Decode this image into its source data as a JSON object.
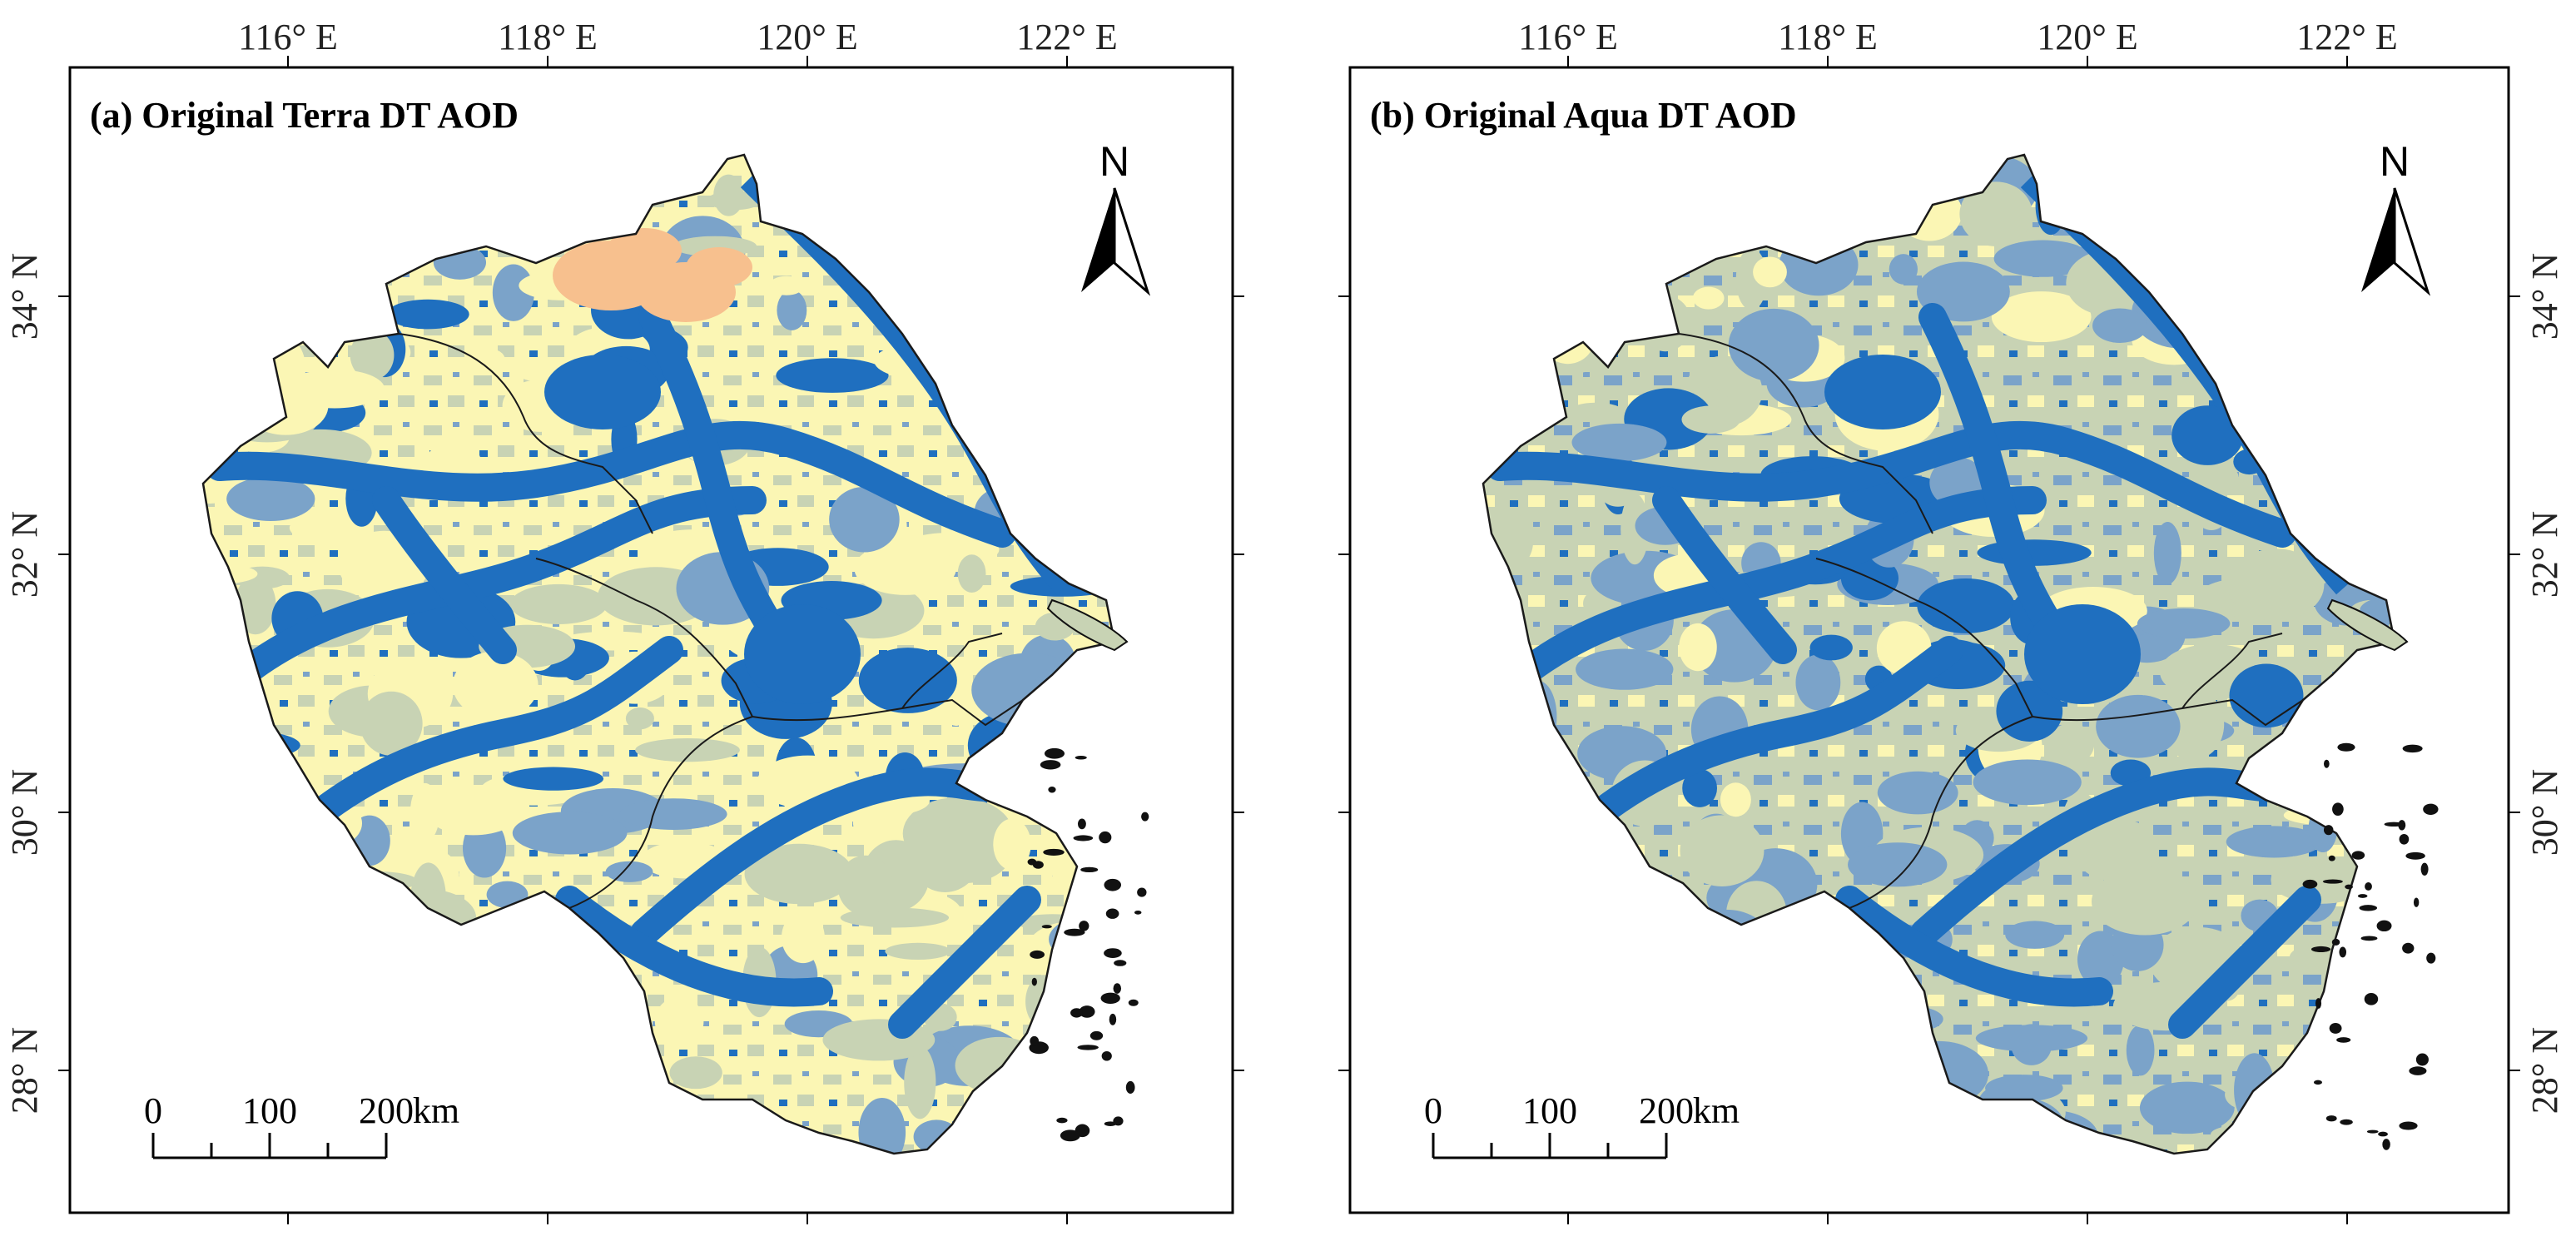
{
  "maps": [
    {
      "id": "a",
      "title": "(a) Original Terra DT AOD",
      "lon_ticks": [
        {
          "value": 116,
          "label": "116° E"
        },
        {
          "value": 118,
          "label": "118° E"
        },
        {
          "value": 120,
          "label": "120° E"
        },
        {
          "value": 122,
          "label": "122° E"
        }
      ],
      "lat_ticks": [
        {
          "value": 34,
          "label": "34° N"
        },
        {
          "value": 32,
          "label": "32° N"
        },
        {
          "value": 30,
          "label": "30° N"
        },
        {
          "value": 28,
          "label": "28° N"
        }
      ],
      "lat_label_side": "left",
      "north_label": "N",
      "scale_labels": [
        "0",
        "100",
        "200",
        "km"
      ]
    },
    {
      "id": "b",
      "title": "(b) Original Aqua DT AOD",
      "lon_ticks": [
        {
          "value": 116,
          "label": "116° E"
        },
        {
          "value": 118,
          "label": "118° E"
        },
        {
          "value": 120,
          "label": "120° E"
        },
        {
          "value": 122,
          "label": "122° E"
        }
      ],
      "lat_ticks": [
        {
          "value": 34,
          "label": "34° N"
        },
        {
          "value": 32,
          "label": "32° N"
        },
        {
          "value": 30,
          "label": "30° N"
        },
        {
          "value": 28,
          "label": "28° N"
        }
      ],
      "lat_label_side": "right",
      "north_label": "N",
      "scale_labels": [
        "0",
        "100",
        "200",
        "km"
      ]
    }
  ],
  "palette": {
    "dark_blue": "#1f6fbf",
    "mid_blue": "#7ba3c9",
    "grey_green": "#c8d3b4",
    "light_yellow": "#fbf6b4",
    "orange": "#f7c08e",
    "border": "#1a1a1a"
  }
}
